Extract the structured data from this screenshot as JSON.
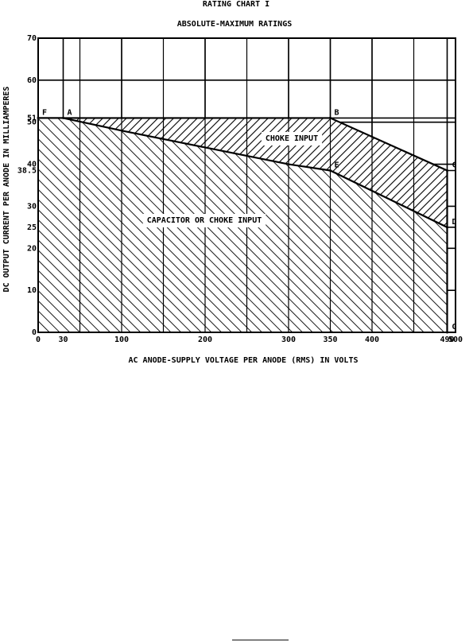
{
  "chart_data": {
    "type": "area",
    "title": "RATING CHART I",
    "subtitle": "ABSOLUTE-MAXIMUM RATINGS",
    "xlabel": "AC ANODE-SUPPLY VOLTAGE PER ANODE (RMS) IN VOLTS",
    "ylabel": "DC OUTPUT CURRENT PER ANODE IN MILLIAMPERES",
    "xlim": [
      0,
      500
    ],
    "ylim": [
      0,
      70
    ],
    "xticks": [
      0,
      30,
      100,
      200,
      300,
      350,
      400,
      490,
      500
    ],
    "yticks": [
      0,
      10,
      20,
      25,
      30,
      38.5,
      40,
      50,
      51,
      60,
      70
    ],
    "grid": true,
    "series": [
      {
        "name": "CHOKE INPUT",
        "color": "#000000",
        "x": [
          0,
          350,
          490,
          490
        ],
        "values": [
          51,
          51,
          38.5,
          25
        ]
      },
      {
        "name": "CAPACITOR OR CHOKE INPUT",
        "color": "#000000",
        "x": [
          0,
          30,
          100,
          200,
          300,
          350,
          490,
          490
        ],
        "values": [
          51,
          51,
          48,
          44,
          40,
          38.5,
          25,
          0
        ]
      }
    ],
    "points": [
      {
        "label": "F",
        "x": 0,
        "y": 51
      },
      {
        "label": "A",
        "x": 30,
        "y": 51
      },
      {
        "label": "B",
        "x": 350,
        "y": 51
      },
      {
        "label": "C",
        "x": 490,
        "y": 38.5
      },
      {
        "label": "E",
        "x": 350,
        "y": 38.5
      },
      {
        "label": "D",
        "x": 490,
        "y": 25
      },
      {
        "label": "G",
        "x": 490,
        "y": 0
      }
    ]
  }
}
